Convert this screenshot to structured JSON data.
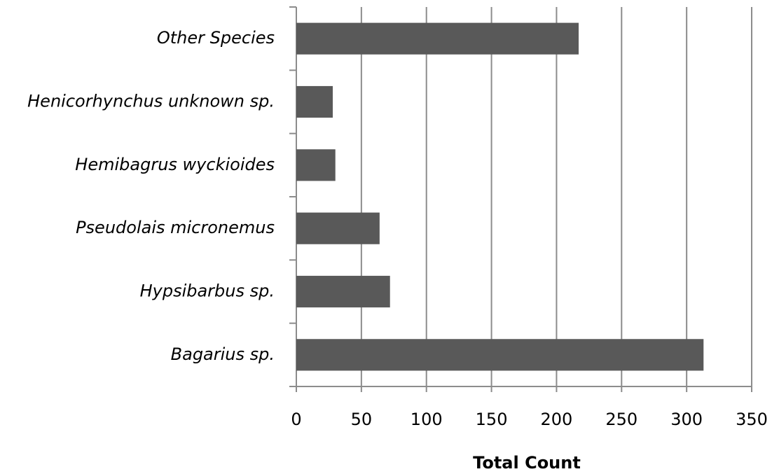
{
  "chart_data": {
    "type": "barh",
    "xlabel": "Total Count",
    "categories": [
      "Bagarius sp.",
      "Hypsibarbus sp.",
      "Pseudolais micronemus",
      "Hemibagrus wyckioides",
      "Henicorhynchus unknown sp.",
      "Other Species"
    ],
    "values": [
      313,
      72,
      64,
      30,
      28,
      217
    ],
    "color": "#595959",
    "xlim": [
      0,
      350
    ],
    "xticks": [
      0,
      50,
      100,
      150,
      200,
      250,
      300,
      350
    ],
    "grid": true
  }
}
